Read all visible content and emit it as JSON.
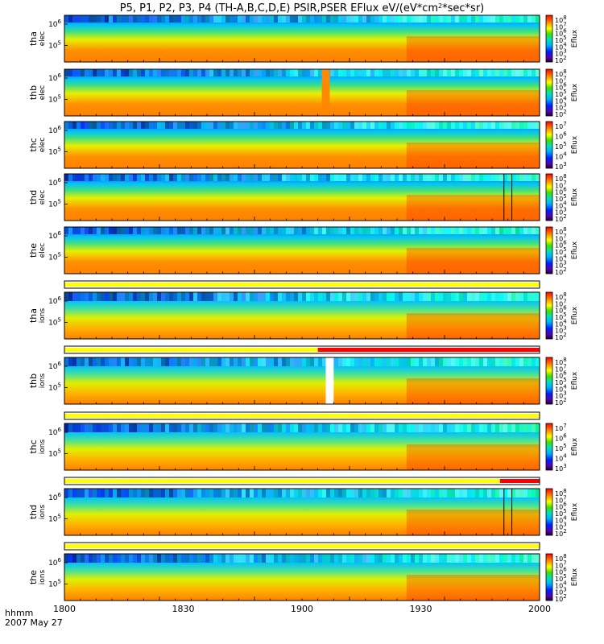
{
  "title": "P5, P1, P2, P3, P4 (TH-A,B,C,D,E) PSIR,PSER EFlux eV/(eV*cm",
  "title_unit_tail": "*sec*sr)",
  "colorbar_label": "Eflux",
  "footer": {
    "time_label": "hhmm",
    "date_label": "2007 May 27"
  },
  "colors": {
    "flag_yellow": "#ffff00",
    "flag_red": "#ff0000",
    "frame": "#000000"
  },
  "chart_data": {
    "type": "heatmap",
    "x_unit": "hhmm",
    "xlim": [
      "1800",
      "2000"
    ],
    "x_ticks": [
      "1800",
      "1830",
      "1900",
      "1930",
      "2000"
    ],
    "panels": [
      {
        "id": "tha-elec",
        "ylabel": [
          "tha",
          "elec"
        ],
        "y_ticks": [
          "10^6",
          "10^5"
        ],
        "cbar_ticks": [
          "10^8",
          "10^7",
          "10^6",
          "10^5",
          "10^4",
          "10^3",
          "10^2"
        ],
        "gaps": [],
        "lines": []
      },
      {
        "id": "thb-elec",
        "ylabel": [
          "thb",
          "elec"
        ],
        "y_ticks": [
          "10^6",
          "10^5"
        ],
        "cbar_ticks": [
          "10^8",
          "10^7",
          "10^6",
          "10^5",
          "10^4",
          "10^3",
          "10^2"
        ],
        "gaps": [
          {
            "start": 1905,
            "end": 1907,
            "color": "#ff8800"
          }
        ],
        "lines": []
      },
      {
        "id": "thc-elec",
        "ylabel": [
          "thc",
          "elec"
        ],
        "y_ticks": [
          "10^6",
          "10^5"
        ],
        "cbar_ticks": [
          "10^7",
          "10^6",
          "10^5",
          "10^4",
          "10^3"
        ],
        "gaps": [],
        "lines": []
      },
      {
        "id": "thd-elec",
        "ylabel": [
          "thd",
          "elec"
        ],
        "y_ticks": [
          "10^6",
          "10^5"
        ],
        "cbar_ticks": [
          "10^8",
          "10^7",
          "10^6",
          "10^5",
          "10^4",
          "10^3",
          "10^2"
        ],
        "gaps": [],
        "lines": [
          1951,
          1953
        ]
      },
      {
        "id": "the-elec",
        "ylabel": [
          "the",
          "elec"
        ],
        "y_ticks": [
          "10^6",
          "10^5"
        ],
        "cbar_ticks": [
          "10^8",
          "10^7",
          "10^6",
          "10^5",
          "10^4",
          "10^3",
          "10^2"
        ],
        "gaps": [],
        "lines": []
      },
      {
        "id": "tha-ions",
        "ylabel": [
          "tha",
          "ions"
        ],
        "y_ticks": [
          "10^6",
          "10^5"
        ],
        "cbar_ticks": [
          "10^8",
          "10^7",
          "10^6",
          "10^5",
          "10^4",
          "10^3",
          "10^2"
        ],
        "gaps": [],
        "lines": []
      },
      {
        "id": "thb-ions",
        "ylabel": [
          "thb",
          "ions"
        ],
        "y_ticks": [
          "10^6",
          "10^5"
        ],
        "cbar_ticks": [
          "10^8",
          "10^7",
          "10^6",
          "10^5",
          "10^4",
          "10^3",
          "10^2"
        ],
        "gaps": [
          {
            "start": 1906,
            "end": 1908,
            "color": "#ffffff"
          }
        ],
        "lines": []
      },
      {
        "id": "thc-ions",
        "ylabel": [
          "thc",
          "ions"
        ],
        "y_ticks": [
          "10^6",
          "10^5"
        ],
        "cbar_ticks": [
          "10^7",
          "10^6",
          "10^5",
          "10^4",
          "10^3"
        ],
        "gaps": [],
        "lines": []
      },
      {
        "id": "thd-ions",
        "ylabel": [
          "thd",
          "ions"
        ],
        "y_ticks": [
          "10^6",
          "10^5"
        ],
        "cbar_ticks": [
          "10^8",
          "10^7",
          "10^6",
          "10^5",
          "10^4",
          "10^3",
          "10^2"
        ],
        "gaps": [],
        "lines": [
          1951,
          1953
        ]
      },
      {
        "id": "the-ions",
        "ylabel": [
          "the",
          "ions"
        ],
        "y_ticks": [
          "10^6",
          "10^5"
        ],
        "cbar_ticks": [
          "10^8",
          "10^7",
          "10^6",
          "10^5",
          "10^4",
          "10^3",
          "10^2"
        ],
        "gaps": [],
        "lines": []
      }
    ],
    "flag_bars": [
      {
        "after_panel": "the-elec",
        "segments": [
          {
            "start": 1800,
            "end": 2000,
            "color": "#ffff00"
          }
        ]
      },
      {
        "after_panel": "tha-ions",
        "segments": [
          {
            "start": 1800,
            "end": 1904,
            "color": "#ffff00"
          },
          {
            "start": 1904,
            "end": 2000,
            "color": "#ff0000"
          }
        ]
      },
      {
        "after_panel": "thb-ions",
        "segments": [
          {
            "start": 1800,
            "end": 2000,
            "color": "#ffff00"
          }
        ]
      },
      {
        "after_panel": "thc-ions",
        "segments": [
          {
            "start": 1800,
            "end": 1950,
            "color": "#ffff00"
          },
          {
            "start": 1950,
            "end": 2000,
            "color": "#ff0000"
          }
        ]
      },
      {
        "after_panel": "thd-ions",
        "segments": [
          {
            "start": 1800,
            "end": 2000,
            "color": "#ffff00"
          }
        ]
      }
    ]
  }
}
